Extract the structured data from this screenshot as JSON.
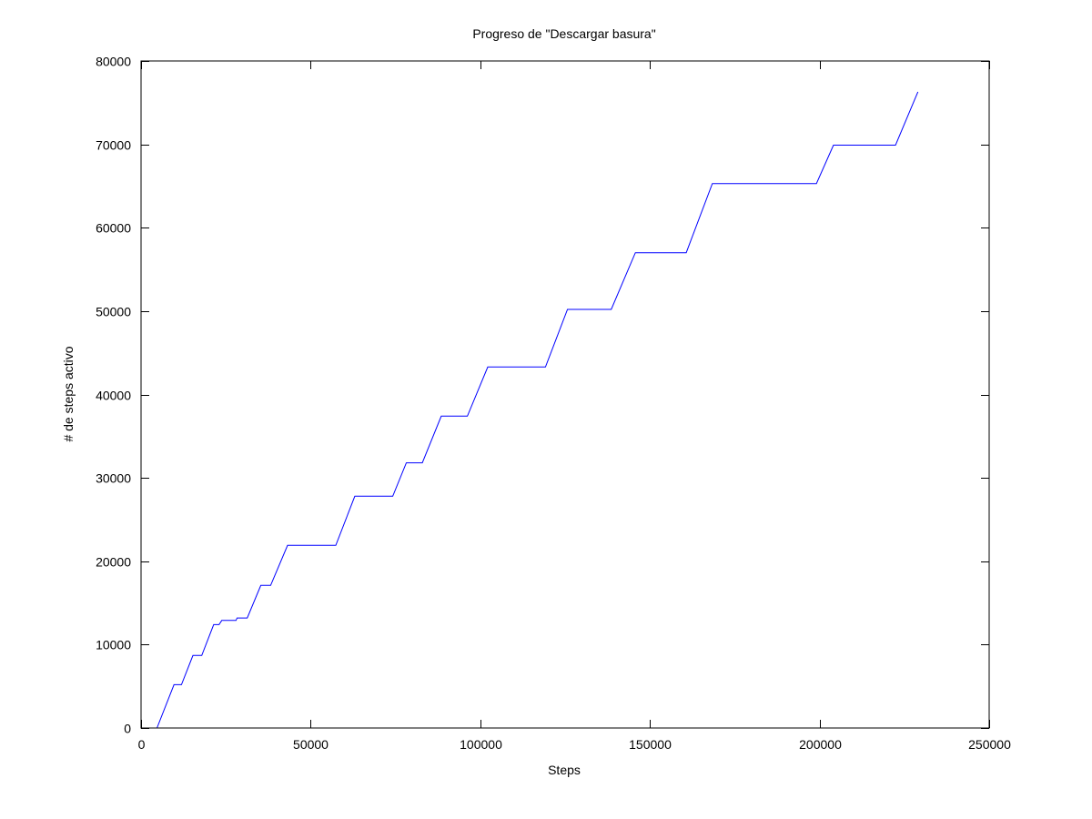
{
  "chart_data": {
    "type": "line",
    "title": "Progreso de \"Descargar basura\"",
    "xlabel": "Steps",
    "ylabel": "# de steps activo",
    "xlim": [
      0,
      250000
    ],
    "ylim": [
      0,
      80000
    ],
    "x_ticks": [
      0,
      50000,
      100000,
      150000,
      200000,
      250000
    ],
    "y_ticks": [
      0,
      10000,
      20000,
      30000,
      40000,
      50000,
      60000,
      70000,
      80000
    ],
    "x_tick_labels": [
      "0",
      "50000",
      "100000",
      "150000",
      "200000",
      "250000"
    ],
    "y_tick_labels": [
      "0",
      "10000",
      "20000",
      "30000",
      "40000",
      "50000",
      "60000",
      "70000",
      "80000"
    ],
    "grid": false,
    "line_color": "#0000ff",
    "axis_color": "#000000",
    "series": [
      {
        "x": [
          0,
          4700,
          9700,
          11900,
          15300,
          17900,
          21400,
          23000,
          23800,
          28000,
          28300,
          31300,
          35300,
          38200,
          43200,
          57400,
          63000,
          74200,
          78200,
          82900,
          88500,
          96200,
          102200,
          119200,
          125700,
          138600,
          145700,
          160700,
          168400,
          199100,
          204100,
          222400,
          229000
        ],
        "y": [
          0,
          0,
          5200,
          5200,
          8700,
          8700,
          12400,
          12400,
          12900,
          12900,
          13200,
          13200,
          17100,
          17100,
          21900,
          21900,
          27800,
          27800,
          31800,
          31800,
          37400,
          37400,
          43300,
          43300,
          50200,
          50200,
          57000,
          57000,
          65300,
          65300,
          69900,
          69900,
          76300
        ]
      }
    ]
  }
}
